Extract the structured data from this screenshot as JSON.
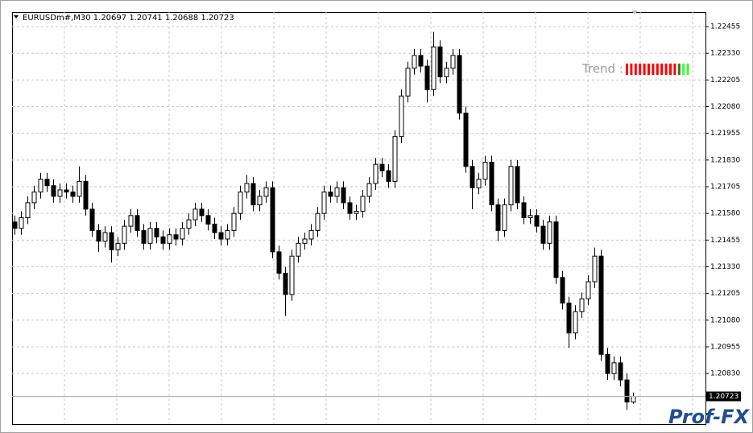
{
  "chart_data": {
    "type": "candlestick",
    "title": "EURUSDm#,M30  1.20697 1.20741 1.20688 1.20723",
    "ylim": [
      1.20593,
      1.22523
    ],
    "yticks": [
      1.22455,
      {
        "value": 1.2233,
        "label": "1.22330"
      },
      1.22205,
      {
        "value": 1.2208,
        "label": "1.22080"
      },
      1.21955,
      {
        "value": 1.2183,
        "label": "1.21830"
      },
      1.21705,
      {
        "value": 1.2158,
        "label": "1.21580"
      },
      1.21455,
      {
        "value": 1.2133,
        "label": "1.21330"
      },
      1.21205,
      {
        "value": 1.2108,
        "label": "1.21080"
      },
      1.20955,
      {
        "value": 1.2083,
        "label": "1.20830"
      }
    ],
    "grid": true,
    "up_color": "#ffffff",
    "down_color": "#000000",
    "current_price": 1.20723,
    "trend": {
      "label": "Trend :",
      "colors": [
        "#ff0000",
        "#ff0000",
        "#ff0000",
        "#ff0000",
        "#ff0000",
        "#ff0000",
        "#ff0000",
        "#ff0000",
        "#ff0000",
        "#ff0000",
        "#ff0000",
        "#ff0000",
        "#1f7a1f",
        "#33ff33",
        "#33ff33"
      ]
    },
    "watermark": "Prof-FX",
    "ohlc": [
      [
        1.2154,
        1.2157,
        1.2148,
        1.2151
      ],
      [
        1.2151,
        1.2159,
        1.2148,
        1.2156
      ],
      [
        1.2156,
        1.2166,
        1.2153,
        1.2163
      ],
      [
        1.2163,
        1.2171,
        1.216,
        1.2168
      ],
      [
        1.2168,
        1.2177,
        1.2165,
        1.2174
      ],
      [
        1.2174,
        1.2177,
        1.2168,
        1.2171
      ],
      [
        1.2171,
        1.2174,
        1.2163,
        1.2166
      ],
      [
        1.2166,
        1.2172,
        1.2163,
        1.2169
      ],
      [
        1.2169,
        1.2172,
        1.2165,
        1.2168
      ],
      [
        1.2168,
        1.2171,
        1.2163,
        1.2166
      ],
      [
        1.2166,
        1.218,
        1.2163,
        1.2173
      ],
      [
        1.2173,
        1.2176,
        1.2157,
        1.216
      ],
      [
        1.216,
        1.2163,
        1.2147,
        1.215
      ],
      [
        1.215,
        1.2153,
        1.214,
        1.2145
      ],
      [
        1.2145,
        1.2152,
        1.2142,
        1.2149
      ],
      [
        1.2149,
        1.2152,
        1.2135,
        1.2141
      ],
      [
        1.2141,
        1.2147,
        1.2138,
        1.2144
      ],
      [
        1.2144,
        1.2155,
        1.2141,
        1.2152
      ],
      [
        1.2152,
        1.216,
        1.2149,
        1.2157
      ],
      [
        1.2157,
        1.216,
        1.2147,
        1.215
      ],
      [
        1.215,
        1.2153,
        1.2141,
        1.2144
      ],
      [
        1.2144,
        1.2154,
        1.2141,
        1.2151
      ],
      [
        1.2151,
        1.2154,
        1.2144,
        1.2147
      ],
      [
        1.2147,
        1.215,
        1.2141,
        1.2144
      ],
      [
        1.2144,
        1.2151,
        1.2141,
        1.2148
      ],
      [
        1.2148,
        1.2151,
        1.2143,
        1.2146
      ],
      [
        1.2146,
        1.2154,
        1.2143,
        1.2151
      ],
      [
        1.2151,
        1.2158,
        1.2148,
        1.2155
      ],
      [
        1.2155,
        1.2163,
        1.2152,
        1.216
      ],
      [
        1.216,
        1.2163,
        1.2154,
        1.2157
      ],
      [
        1.2157,
        1.216,
        1.215,
        1.2153
      ],
      [
        1.2153,
        1.2156,
        1.2146,
        1.2149
      ],
      [
        1.2149,
        1.2152,
        1.2143,
        1.2146
      ],
      [
        1.2146,
        1.2153,
        1.2143,
        1.215
      ],
      [
        1.215,
        1.2161,
        1.2147,
        1.2158
      ],
      [
        1.2158,
        1.2171,
        1.2155,
        1.2168
      ],
      [
        1.2168,
        1.2176,
        1.2165,
        1.2172
      ],
      [
        1.2172,
        1.2175,
        1.2159,
        1.2162
      ],
      [
        1.2162,
        1.2169,
        1.2159,
        1.2166
      ],
      [
        1.2166,
        1.2173,
        1.2163,
        1.217
      ],
      [
        1.217,
        1.2173,
        1.2137,
        1.214
      ],
      [
        1.214,
        1.2143,
        1.2127,
        1.213
      ],
      [
        1.213,
        1.2133,
        1.211,
        1.212
      ],
      [
        1.212,
        1.2141,
        1.2117,
        1.2138
      ],
      [
        1.2138,
        1.2147,
        1.2135,
        1.2144
      ],
      [
        1.2144,
        1.2149,
        1.2141,
        1.2146
      ],
      [
        1.2146,
        1.2153,
        1.2143,
        1.215
      ],
      [
        1.215,
        1.2161,
        1.2147,
        1.2158
      ],
      [
        1.2158,
        1.2171,
        1.2155,
        1.2168
      ],
      [
        1.2168,
        1.2171,
        1.2163,
        1.2166
      ],
      [
        1.2166,
        1.2173,
        1.2163,
        1.217
      ],
      [
        1.217,
        1.2173,
        1.216,
        1.2163
      ],
      [
        1.2163,
        1.2166,
        1.2155,
        1.2158
      ],
      [
        1.2158,
        1.2162,
        1.2155,
        1.2159
      ],
      [
        1.2159,
        1.2169,
        1.2156,
        1.2166
      ],
      [
        1.2166,
        1.2175,
        1.2163,
        1.2172
      ],
      [
        1.2172,
        1.2184,
        1.2169,
        1.2181
      ],
      [
        1.2181,
        1.2184,
        1.2175,
        1.2178
      ],
      [
        1.2178,
        1.2181,
        1.217,
        1.2173
      ],
      [
        1.2173,
        1.2197,
        1.217,
        1.2194
      ],
      [
        1.2194,
        1.2216,
        1.2191,
        1.2213
      ],
      [
        1.2213,
        1.2229,
        1.221,
        1.2226
      ],
      [
        1.2226,
        1.2235,
        1.2223,
        1.2232
      ],
      [
        1.2232,
        1.2235,
        1.2224,
        1.2227
      ],
      [
        1.2227,
        1.223,
        1.221,
        1.2216
      ],
      [
        1.2216,
        1.2243,
        1.2213,
        1.2236
      ],
      [
        1.2236,
        1.2239,
        1.2219,
        1.2222
      ],
      [
        1.2222,
        1.2229,
        1.2219,
        1.2226
      ],
      [
        1.2226,
        1.2235,
        1.2223,
        1.2232
      ],
      [
        1.2232,
        1.2235,
        1.2202,
        1.2205
      ],
      [
        1.2205,
        1.2208,
        1.2177,
        1.218
      ],
      [
        1.218,
        1.2183,
        1.216,
        1.217
      ],
      [
        1.217,
        1.2177,
        1.2167,
        1.2174
      ],
      [
        1.2174,
        1.2185,
        1.2171,
        1.2182
      ],
      [
        1.2182,
        1.2185,
        1.2159,
        1.2162
      ],
      [
        1.2162,
        1.2165,
        1.2145,
        1.215
      ],
      [
        1.215,
        1.2165,
        1.2147,
        1.2162
      ],
      [
        1.2162,
        1.2183,
        1.2159,
        1.218
      ],
      [
        1.218,
        1.2183,
        1.216,
        1.2163
      ],
      [
        1.2163,
        1.2166,
        1.2153,
        1.2156
      ],
      [
        1.2156,
        1.216,
        1.2153,
        1.2157
      ],
      [
        1.2157,
        1.216,
        1.2149,
        1.2152
      ],
      [
        1.2152,
        1.2155,
        1.2141,
        1.2144
      ],
      [
        1.2144,
        1.2157,
        1.2141,
        1.2154
      ],
      [
        1.2154,
        1.2157,
        1.2125,
        1.2128
      ],
      [
        1.2128,
        1.2131,
        1.2113,
        1.2116
      ],
      [
        1.2116,
        1.2119,
        1.2095,
        1.2102
      ],
      [
        1.2102,
        1.2115,
        1.2099,
        1.2112
      ],
      [
        1.2112,
        1.2121,
        1.2109,
        1.2118
      ],
      [
        1.2118,
        1.2129,
        1.2115,
        1.2126
      ],
      [
        1.2126,
        1.2142,
        1.2123,
        1.2138
      ],
      [
        1.2138,
        1.2141,
        1.2089,
        1.2092
      ],
      [
        1.2092,
        1.2095,
        1.208,
        1.2083
      ],
      [
        1.2083,
        1.2091,
        1.208,
        1.2088
      ],
      [
        1.2088,
        1.2091,
        1.2077,
        1.208
      ],
      [
        1.208,
        1.2083,
        1.2066,
        1.20697
      ],
      [
        1.20697,
        1.20741,
        1.20688,
        1.20723
      ]
    ]
  }
}
